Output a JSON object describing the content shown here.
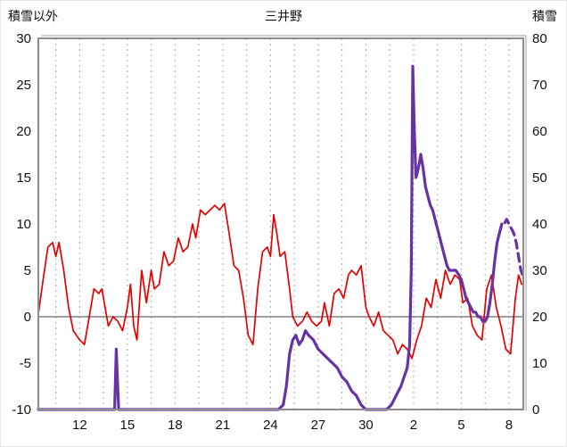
{
  "header": {
    "left_axis_title": "積雪以外",
    "title": "三井野",
    "right_axis_title": "積雪"
  },
  "chart_data": {
    "type": "line",
    "title": "三井野",
    "grid": "vertical-dashed",
    "legend": "none",
    "left_axis": {
      "label": "積雪以外",
      "min": -10,
      "max": 30,
      "tick_step": 5
    },
    "right_axis": {
      "label": "積雪",
      "min": 0,
      "max": 80,
      "tick_step": 10
    },
    "x_axis": {
      "min": 9.4,
      "max": 39.9,
      "minor_grid_start": 10.5,
      "minor_grid_step": 1.5,
      "minor_grid_end": 39.0,
      "ticks": [
        {
          "label": "12",
          "day": 12
        },
        {
          "label": "15",
          "day": 15
        },
        {
          "label": "18",
          "day": 18
        },
        {
          "label": "21",
          "day": 21
        },
        {
          "label": "24",
          "day": 24
        },
        {
          "label": "27",
          "day": 27
        },
        {
          "label": "30",
          "day": 30
        },
        {
          "label": "2",
          "day": 33
        },
        {
          "label": "5",
          "day": 36
        },
        {
          "label": "8",
          "day": 39
        }
      ]
    },
    "zero_line": {
      "value": 0,
      "axis": "left",
      "color": "#808080"
    },
    "colors": {
      "grid": "#b0b0b0",
      "frame": "#8c8c8c",
      "bevel": "#cfcfcf",
      "tick_text": "#111111"
    },
    "series": [
      {
        "name": "積雪以外",
        "axis": "left",
        "color": "#e60000",
        "width": 1.7,
        "points": [
          [
            9.4,
            0.3
          ],
          [
            9.7,
            4
          ],
          [
            10.0,
            7.5
          ],
          [
            10.3,
            8
          ],
          [
            10.5,
            6.5
          ],
          [
            10.7,
            8
          ],
          [
            11.0,
            5
          ],
          [
            11.3,
            1
          ],
          [
            11.6,
            -1.5
          ],
          [
            12.0,
            -2.5
          ],
          [
            12.3,
            -3
          ],
          [
            12.6,
            0
          ],
          [
            12.9,
            3
          ],
          [
            13.2,
            2.5
          ],
          [
            13.4,
            3
          ],
          [
            13.6,
            1
          ],
          [
            13.8,
            -1
          ],
          [
            14.1,
            0
          ],
          [
            14.4,
            -0.5
          ],
          [
            14.7,
            -1.5
          ],
          [
            15.0,
            1
          ],
          [
            15.2,
            3.5
          ],
          [
            15.4,
            -1
          ],
          [
            15.6,
            -2.5
          ],
          [
            15.9,
            5
          ],
          [
            16.2,
            1.5
          ],
          [
            16.5,
            5
          ],
          [
            16.7,
            3
          ],
          [
            17.0,
            3.5
          ],
          [
            17.3,
            7
          ],
          [
            17.6,
            5.5
          ],
          [
            17.9,
            6
          ],
          [
            18.2,
            8.5
          ],
          [
            18.5,
            7
          ],
          [
            18.8,
            7.5
          ],
          [
            19.1,
            10
          ],
          [
            19.3,
            8.5
          ],
          [
            19.6,
            11.5
          ],
          [
            19.9,
            11
          ],
          [
            20.2,
            11.5
          ],
          [
            20.5,
            12
          ],
          [
            20.8,
            11.5
          ],
          [
            21.1,
            12.2
          ],
          [
            21.4,
            9
          ],
          [
            21.7,
            5.5
          ],
          [
            22.0,
            5
          ],
          [
            22.3,
            2
          ],
          [
            22.6,
            -2
          ],
          [
            22.9,
            -3
          ],
          [
            23.2,
            3
          ],
          [
            23.5,
            7
          ],
          [
            23.8,
            7.5
          ],
          [
            24.0,
            6.5
          ],
          [
            24.2,
            11
          ],
          [
            24.4,
            9
          ],
          [
            24.6,
            6.5
          ],
          [
            24.9,
            7
          ],
          [
            25.2,
            3
          ],
          [
            25.4,
            0
          ],
          [
            25.7,
            -1
          ],
          [
            26.0,
            -0.5
          ],
          [
            26.3,
            0.5
          ],
          [
            26.6,
            -0.5
          ],
          [
            26.9,
            -1
          ],
          [
            27.2,
            -0.5
          ],
          [
            27.4,
            1.5
          ],
          [
            27.7,
            -1
          ],
          [
            28.0,
            2.5
          ],
          [
            28.3,
            3
          ],
          [
            28.6,
            2
          ],
          [
            28.9,
            4.5
          ],
          [
            29.1,
            5
          ],
          [
            29.4,
            4.5
          ],
          [
            29.7,
            5.5
          ],
          [
            30.0,
            1
          ],
          [
            30.2,
            0
          ],
          [
            30.5,
            -1
          ],
          [
            30.8,
            0.5
          ],
          [
            31.1,
            -1.5
          ],
          [
            31.4,
            -2
          ],
          [
            31.7,
            -2.5
          ],
          [
            32.0,
            -4
          ],
          [
            32.3,
            -3
          ],
          [
            32.6,
            -3.5
          ],
          [
            32.9,
            -4.5
          ],
          [
            33.2,
            -2.5
          ],
          [
            33.5,
            -1
          ],
          [
            33.8,
            2
          ],
          [
            34.1,
            1
          ],
          [
            34.4,
            4
          ],
          [
            34.7,
            2
          ],
          [
            35.0,
            5
          ],
          [
            35.3,
            3.5
          ],
          [
            35.6,
            4.5
          ],
          [
            35.9,
            4
          ],
          [
            36.1,
            1.5
          ],
          [
            36.4,
            2
          ],
          [
            36.7,
            -1
          ],
          [
            37.0,
            -2
          ],
          [
            37.3,
            -2.5
          ],
          [
            37.6,
            3
          ],
          [
            37.9,
            4.5
          ],
          [
            38.2,
            1
          ],
          [
            38.5,
            -1
          ],
          [
            38.8,
            -3.5
          ],
          [
            39.1,
            -4
          ],
          [
            39.4,
            2
          ],
          [
            39.6,
            4.5
          ],
          [
            39.8,
            3.5
          ]
        ]
      },
      {
        "name": "積雪",
        "axis": "right",
        "color": "#6633a6",
        "width": 3.2,
        "dash_from_day": 38.6,
        "dash_pattern": "9 6",
        "points": [
          [
            9.4,
            0
          ],
          [
            14.0,
            0
          ],
          [
            14.2,
            0
          ],
          [
            14.3,
            13
          ],
          [
            14.45,
            0
          ],
          [
            24.5,
            0
          ],
          [
            24.8,
            1
          ],
          [
            25.0,
            5
          ],
          [
            25.2,
            12
          ],
          [
            25.4,
            15
          ],
          [
            25.6,
            16
          ],
          [
            25.8,
            14
          ],
          [
            26.0,
            15
          ],
          [
            26.2,
            17
          ],
          [
            26.4,
            16
          ],
          [
            26.7,
            15
          ],
          [
            27.0,
            13
          ],
          [
            27.3,
            12
          ],
          [
            27.6,
            11
          ],
          [
            27.9,
            10
          ],
          [
            28.2,
            9
          ],
          [
            28.5,
            7
          ],
          [
            28.8,
            6
          ],
          [
            29.1,
            4
          ],
          [
            29.4,
            3
          ],
          [
            29.7,
            1
          ],
          [
            30.0,
            0
          ],
          [
            31.3,
            0
          ],
          [
            31.6,
            1
          ],
          [
            31.9,
            3
          ],
          [
            32.2,
            5
          ],
          [
            32.4,
            7
          ],
          [
            32.6,
            9
          ],
          [
            32.75,
            14
          ],
          [
            32.85,
            30
          ],
          [
            32.95,
            74
          ],
          [
            33.05,
            60
          ],
          [
            33.15,
            50
          ],
          [
            33.3,
            52
          ],
          [
            33.45,
            55
          ],
          [
            33.6,
            52
          ],
          [
            33.75,
            48
          ],
          [
            33.9,
            46
          ],
          [
            34.05,
            44
          ],
          [
            34.2,
            43
          ],
          [
            34.35,
            41
          ],
          [
            34.5,
            39
          ],
          [
            34.65,
            37
          ],
          [
            34.8,
            35
          ],
          [
            34.95,
            33
          ],
          [
            35.1,
            31
          ],
          [
            35.25,
            30
          ],
          [
            35.45,
            30
          ],
          [
            35.65,
            30
          ],
          [
            35.85,
            29
          ],
          [
            36.0,
            28
          ],
          [
            36.15,
            26
          ],
          [
            36.3,
            24
          ],
          [
            36.45,
            23
          ],
          [
            36.6,
            22
          ],
          [
            36.75,
            21
          ],
          [
            36.9,
            21
          ],
          [
            37.05,
            20
          ],
          [
            37.2,
            20
          ],
          [
            37.35,
            19
          ],
          [
            37.5,
            19
          ],
          [
            37.65,
            20
          ],
          [
            37.8,
            23
          ],
          [
            37.95,
            27
          ],
          [
            38.1,
            32
          ],
          [
            38.25,
            36
          ],
          [
            38.4,
            38
          ],
          [
            38.55,
            40
          ],
          [
            38.7,
            40
          ],
          [
            38.85,
            41
          ],
          [
            39.0,
            40
          ],
          [
            39.15,
            39
          ],
          [
            39.3,
            38
          ],
          [
            39.45,
            36
          ],
          [
            39.6,
            33
          ],
          [
            39.75,
            30
          ],
          [
            39.85,
            29
          ]
        ]
      }
    ]
  }
}
